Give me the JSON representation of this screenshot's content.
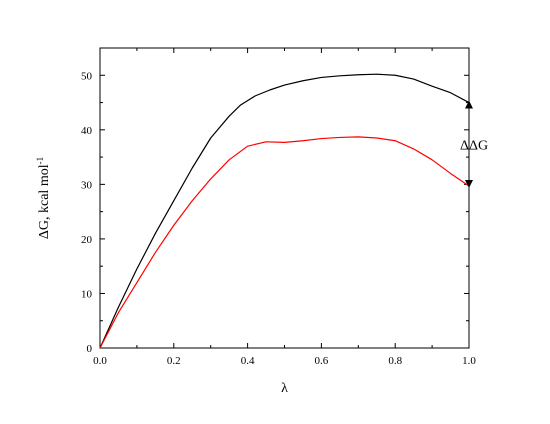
{
  "chart_data": {
    "type": "line",
    "xlabel": "λ",
    "ylabel_main": "ΔG, kcal mol",
    "ylabel_sup": "-1",
    "xlim": [
      0.0,
      1.0
    ],
    "ylim": [
      0,
      55
    ],
    "x_ticks": [
      "0.0",
      "0.2",
      "0.4",
      "0.6",
      "0.8",
      "1.0"
    ],
    "y_ticks": [
      "0",
      "10",
      "20",
      "30",
      "40",
      "50"
    ],
    "grid": false,
    "series": [
      {
        "color": "#000000",
        "x": [
          0.0,
          0.05,
          0.1,
          0.15,
          0.2,
          0.25,
          0.3,
          0.35,
          0.38,
          0.42,
          0.46,
          0.5,
          0.55,
          0.6,
          0.65,
          0.7,
          0.75,
          0.8,
          0.85,
          0.9,
          0.95,
          1.0
        ],
        "y": [
          0,
          7.5,
          14.5,
          21,
          27,
          33,
          38.5,
          42.5,
          44.5,
          46.2,
          47.3,
          48.2,
          49,
          49.6,
          49.9,
          50.1,
          50.2,
          50,
          49.3,
          48,
          46.8,
          45
        ]
      },
      {
        "color": "#ff0000",
        "x": [
          0.0,
          0.05,
          0.1,
          0.15,
          0.2,
          0.25,
          0.3,
          0.35,
          0.4,
          0.45,
          0.5,
          0.55,
          0.6,
          0.65,
          0.7,
          0.75,
          0.8,
          0.85,
          0.9,
          0.95,
          1.0
        ],
        "y": [
          0,
          6.5,
          12,
          17.5,
          22.5,
          27,
          31,
          34.5,
          37,
          37.8,
          37.7,
          38,
          38.4,
          38.6,
          38.7,
          38.5,
          38,
          36.5,
          34.5,
          32,
          29.7
        ]
      }
    ],
    "annotation": {
      "text": "ΔΔG",
      "x": 1.0,
      "y_from": 45,
      "y_to": 29.7
    }
  }
}
